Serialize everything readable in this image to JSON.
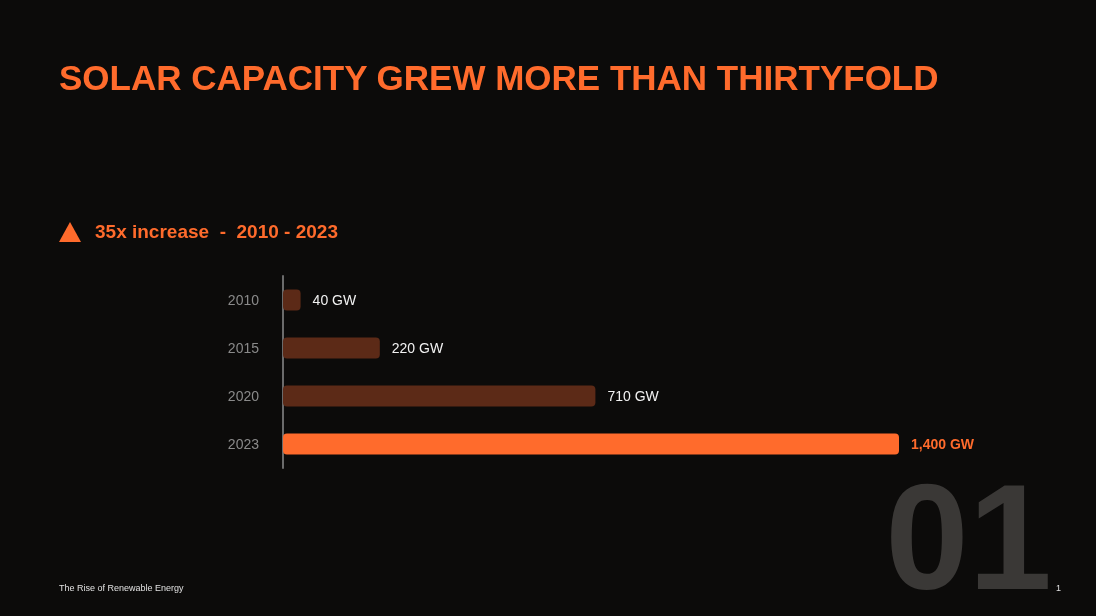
{
  "chart_data": {
    "type": "bar",
    "orientation": "horizontal",
    "title": "SOLAR CAPACITY GREW MORE THAN THIRTYFOLD",
    "subtitle": "35x increase  -  2010 - 2023",
    "categories": [
      "2010",
      "2015",
      "2020",
      "2023"
    ],
    "values": [
      40,
      220,
      710,
      1400
    ],
    "value_labels": [
      "40 GW",
      "220 GW",
      "710 GW",
      "1,400 GW"
    ],
    "colors": [
      "#5c2a17",
      "#5c2a17",
      "#5c2a17",
      "#ff6b2c"
    ],
    "annotations": [
      "The Rise of Renewable Energy",
      "1",
      "01"
    ]
  }
}
